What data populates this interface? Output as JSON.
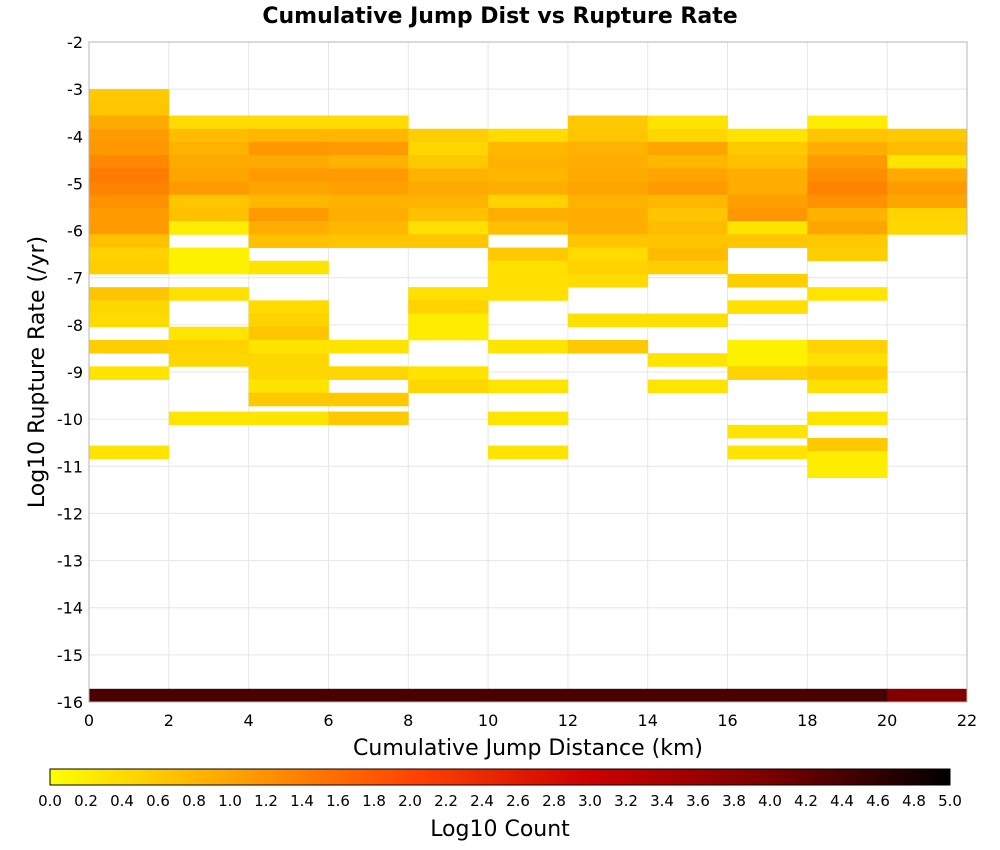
{
  "chart_data": {
    "type": "heatmap",
    "title": "Cumulative Jump Dist vs Rupture Rate",
    "xlabel": "Cumulative Jump Distance (km)",
    "ylabel": "Log10 Rupture Rate (/yr)",
    "xlim": [
      0,
      22
    ],
    "ylim": [
      -16,
      -2
    ],
    "x_ticks": [
      "0",
      "2",
      "4",
      "6",
      "8",
      "10",
      "12",
      "14",
      "16",
      "18",
      "20",
      "22"
    ],
    "y_ticks": [
      "-2",
      "-3",
      "-4",
      "-5",
      "-6",
      "-7",
      "-8",
      "-9",
      "-10",
      "-11",
      "-12",
      "-13",
      "-14",
      "-15",
      "-16"
    ],
    "x_bin_width": 2,
    "y_bin_height": 0.28,
    "grid": true,
    "colorbar": {
      "label": "Log10 Count",
      "range": [
        0,
        5
      ],
      "ticks": [
        "0.0",
        "0.2",
        "0.4",
        "0.6",
        "0.8",
        "1.0",
        "1.2",
        "1.4",
        "1.6",
        "1.8",
        "2.0",
        "2.2",
        "2.4",
        "2.6",
        "2.8",
        "3.0",
        "3.2",
        "3.4",
        "3.6",
        "3.8",
        "4.0",
        "4.2",
        "4.4",
        "4.6",
        "4.8",
        "5.0"
      ],
      "colors": [
        "#ffff00",
        "#ffa500",
        "#ff4500",
        "#cc0000",
        "#7a0000",
        "#000000"
      ]
    },
    "cells_description": "each entry: x bin start (km), y bin bottom (log10 rate), log10 count",
    "cells": [
      [
        0,
        -3.28,
        0.6
      ],
      [
        0,
        -3.56,
        0.65
      ],
      [
        0,
        -3.84,
        0.95
      ],
      [
        0,
        -4.12,
        1.1
      ],
      [
        0,
        -4.4,
        1.15
      ],
      [
        0,
        -4.68,
        1.3
      ],
      [
        0,
        -4.96,
        1.45
      ],
      [
        0,
        -5.24,
        1.35
      ],
      [
        0,
        -5.52,
        1.2
      ],
      [
        0,
        -5.8,
        1.1
      ],
      [
        0,
        -6.08,
        1.1
      ],
      [
        0,
        -6.36,
        0.7
      ],
      [
        0,
        -6.64,
        0.5
      ],
      [
        0,
        -6.92,
        0.55
      ],
      [
        0,
        -7.48,
        0.65
      ],
      [
        0,
        -7.76,
        0.45
      ],
      [
        0,
        -8.04,
        0.4
      ],
      [
        0,
        -8.6,
        0.55
      ],
      [
        0,
        -9.16,
        0.3
      ],
      [
        0,
        -10.84,
        0.3
      ],
      [
        0,
        -16.0,
        4.4
      ],
      [
        2,
        -3.84,
        0.4
      ],
      [
        2,
        -4.12,
        0.75
      ],
      [
        2,
        -4.4,
        0.85
      ],
      [
        2,
        -4.68,
        0.95
      ],
      [
        2,
        -4.96,
        1.0
      ],
      [
        2,
        -5.24,
        1.1
      ],
      [
        2,
        -5.52,
        0.65
      ],
      [
        2,
        -5.8,
        0.7
      ],
      [
        2,
        -6.08,
        0.2
      ],
      [
        2,
        -6.64,
        0.15
      ],
      [
        2,
        -6.92,
        0.15
      ],
      [
        2,
        -7.48,
        0.35
      ],
      [
        2,
        -8.32,
        0.3
      ],
      [
        2,
        -8.6,
        0.5
      ],
      [
        2,
        -8.88,
        0.45
      ],
      [
        2,
        -10.12,
        0.3
      ],
      [
        2,
        -16.0,
        4.4
      ],
      [
        4,
        -3.84,
        0.4
      ],
      [
        4,
        -4.12,
        0.8
      ],
      [
        4,
        -4.4,
        1.15
      ],
      [
        4,
        -4.68,
        0.95
      ],
      [
        4,
        -4.96,
        1.1
      ],
      [
        4,
        -5.24,
        1.0
      ],
      [
        4,
        -5.52,
        0.8
      ],
      [
        4,
        -5.8,
        1.1
      ],
      [
        4,
        -6.08,
        0.9
      ],
      [
        4,
        -6.36,
        0.7
      ],
      [
        4,
        -6.92,
        0.3
      ],
      [
        4,
        -7.76,
        0.4
      ],
      [
        4,
        -8.04,
        0.5
      ],
      [
        4,
        -8.32,
        0.65
      ],
      [
        4,
        -8.6,
        0.3
      ],
      [
        4,
        -8.88,
        0.45
      ],
      [
        4,
        -9.16,
        0.45
      ],
      [
        4,
        -9.44,
        0.3
      ],
      [
        4,
        -9.72,
        0.6
      ],
      [
        4,
        -10.12,
        0.3
      ],
      [
        4,
        -16.0,
        4.4
      ],
      [
        6,
        -3.84,
        0.4
      ],
      [
        6,
        -4.12,
        0.8
      ],
      [
        6,
        -4.4,
        1.1
      ],
      [
        6,
        -4.68,
        0.85
      ],
      [
        6,
        -4.96,
        1.1
      ],
      [
        6,
        -5.24,
        1.05
      ],
      [
        6,
        -5.52,
        0.85
      ],
      [
        6,
        -5.8,
        0.9
      ],
      [
        6,
        -6.08,
        0.8
      ],
      [
        6,
        -6.36,
        0.65
      ],
      [
        6,
        -8.6,
        0.3
      ],
      [
        6,
        -9.16,
        0.45
      ],
      [
        6,
        -9.72,
        0.6
      ],
      [
        6,
        -10.12,
        0.6
      ],
      [
        6,
        -16.0,
        4.4
      ],
      [
        8,
        -4.12,
        0.55
      ],
      [
        8,
        -4.4,
        0.45
      ],
      [
        8,
        -4.68,
        0.6
      ],
      [
        8,
        -4.96,
        0.85
      ],
      [
        8,
        -5.24,
        0.95
      ],
      [
        8,
        -5.52,
        0.85
      ],
      [
        8,
        -5.8,
        0.7
      ],
      [
        8,
        -6.08,
        0.35
      ],
      [
        8,
        -6.36,
        0.65
      ],
      [
        8,
        -7.48,
        0.35
      ],
      [
        8,
        -7.76,
        0.5
      ],
      [
        8,
        -8.04,
        0.2
      ],
      [
        8,
        -8.32,
        0.2
      ],
      [
        8,
        -9.16,
        0.3
      ],
      [
        8,
        -9.44,
        0.45
      ],
      [
        8,
        -16.0,
        4.4
      ],
      [
        10,
        -4.12,
        0.4
      ],
      [
        10,
        -4.4,
        0.8
      ],
      [
        10,
        -4.68,
        0.85
      ],
      [
        10,
        -4.96,
        0.8
      ],
      [
        10,
        -5.24,
        0.9
      ],
      [
        10,
        -5.52,
        0.5
      ],
      [
        10,
        -5.8,
        0.9
      ],
      [
        10,
        -6.08,
        0.7
      ],
      [
        10,
        -6.64,
        0.6
      ],
      [
        10,
        -6.92,
        0.35
      ],
      [
        10,
        -7.2,
        0.35
      ],
      [
        10,
        -7.48,
        0.35
      ],
      [
        10,
        -8.6,
        0.3
      ],
      [
        10,
        -9.44,
        0.3
      ],
      [
        10,
        -10.12,
        0.3
      ],
      [
        10,
        -10.84,
        0.3
      ],
      [
        10,
        -16.0,
        4.4
      ],
      [
        12,
        -3.84,
        0.6
      ],
      [
        12,
        -4.12,
        0.65
      ],
      [
        12,
        -4.4,
        0.85
      ],
      [
        12,
        -4.68,
        0.9
      ],
      [
        12,
        -4.96,
        0.95
      ],
      [
        12,
        -5.24,
        1.0
      ],
      [
        12,
        -5.52,
        0.85
      ],
      [
        12,
        -5.8,
        0.9
      ],
      [
        12,
        -6.08,
        0.9
      ],
      [
        12,
        -6.36,
        0.65
      ],
      [
        12,
        -6.64,
        0.4
      ],
      [
        12,
        -6.92,
        0.5
      ],
      [
        12,
        -7.2,
        0.4
      ],
      [
        12,
        -8.04,
        0.35
      ],
      [
        12,
        -8.6,
        0.6
      ],
      [
        12,
        -16.0,
        4.4
      ],
      [
        14,
        -3.84,
        0.3
      ],
      [
        14,
        -4.12,
        0.45
      ],
      [
        14,
        -4.4,
        1.0
      ],
      [
        14,
        -4.68,
        0.8
      ],
      [
        14,
        -4.96,
        1.0
      ],
      [
        14,
        -5.24,
        1.1
      ],
      [
        14,
        -5.52,
        0.8
      ],
      [
        14,
        -5.8,
        0.65
      ],
      [
        14,
        -6.08,
        0.75
      ],
      [
        14,
        -6.36,
        0.65
      ],
      [
        14,
        -6.64,
        0.75
      ],
      [
        14,
        -6.92,
        0.55
      ],
      [
        14,
        -8.04,
        0.35
      ],
      [
        14,
        -8.88,
        0.3
      ],
      [
        14,
        -9.44,
        0.3
      ],
      [
        14,
        -16.0,
        4.4
      ],
      [
        16,
        -4.12,
        0.3
      ],
      [
        16,
        -4.4,
        0.6
      ],
      [
        16,
        -4.68,
        0.7
      ],
      [
        16,
        -4.96,
        0.9
      ],
      [
        16,
        -5.24,
        0.9
      ],
      [
        16,
        -5.52,
        1.05
      ],
      [
        16,
        -5.8,
        1.15
      ],
      [
        16,
        -6.08,
        0.3
      ],
      [
        16,
        -6.36,
        0.65
      ],
      [
        16,
        -7.2,
        0.55
      ],
      [
        16,
        -7.76,
        0.35
      ],
      [
        16,
        -8.6,
        0.15
      ],
      [
        16,
        -8.88,
        0.15
      ],
      [
        16,
        -9.16,
        0.5
      ],
      [
        16,
        -10.4,
        0.3
      ],
      [
        16,
        -10.84,
        0.3
      ],
      [
        16,
        -16.0,
        4.4
      ],
      [
        18,
        -3.84,
        0.2
      ],
      [
        18,
        -4.12,
        0.65
      ],
      [
        18,
        -4.4,
        0.9
      ],
      [
        18,
        -4.68,
        1.1
      ],
      [
        18,
        -4.96,
        1.25
      ],
      [
        18,
        -5.24,
        1.35
      ],
      [
        18,
        -5.52,
        1.2
      ],
      [
        18,
        -5.8,
        0.85
      ],
      [
        18,
        -6.08,
        1.0
      ],
      [
        18,
        -6.36,
        0.6
      ],
      [
        18,
        -6.64,
        0.55
      ],
      [
        18,
        -7.48,
        0.3
      ],
      [
        18,
        -8.6,
        0.5
      ],
      [
        18,
        -8.88,
        0.35
      ],
      [
        18,
        -9.16,
        0.6
      ],
      [
        18,
        -9.44,
        0.35
      ],
      [
        18,
        -10.12,
        0.3
      ],
      [
        18,
        -10.68,
        0.6
      ],
      [
        18,
        -10.96,
        0.2
      ],
      [
        18,
        -11.24,
        0.2
      ],
      [
        18,
        -16.0,
        4.4
      ],
      [
        20,
        -4.12,
        0.6
      ],
      [
        20,
        -4.4,
        0.75
      ],
      [
        20,
        -4.68,
        0.3
      ],
      [
        20,
        -4.96,
        0.95
      ],
      [
        20,
        -5.24,
        1.1
      ],
      [
        20,
        -5.52,
        1.0
      ],
      [
        20,
        -5.8,
        0.5
      ],
      [
        20,
        -6.08,
        0.45
      ],
      [
        20,
        -16.0,
        3.9
      ]
    ]
  }
}
